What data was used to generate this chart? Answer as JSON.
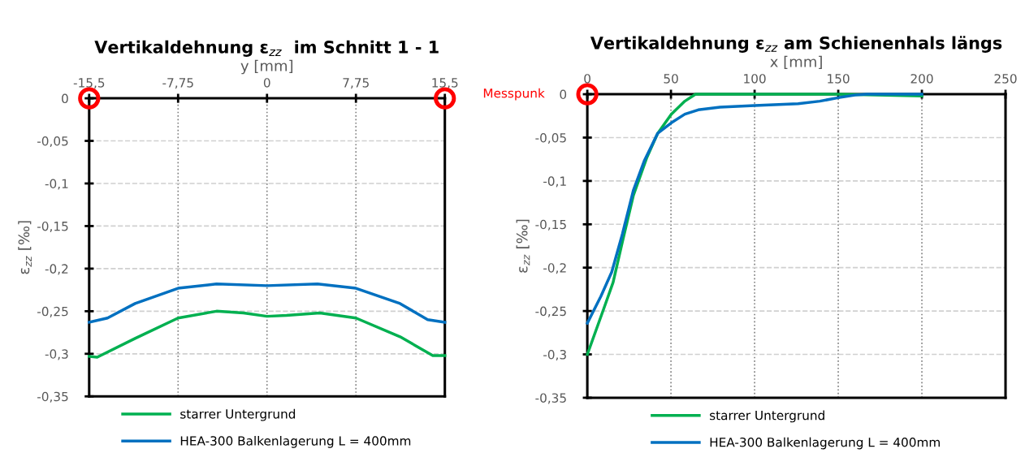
{
  "chart_data": [
    {
      "type": "line",
      "title": "Vertikaldehnung ε$_{zz}$  im Schnitt 1 - 1",
      "xlabel": "y [mm]",
      "ylabel": "ε$_{zz}$ [‰]",
      "xlim": [
        -15.5,
        15.5
      ],
      "xticks": [
        {
          "value": -15.5,
          "label": "-15,5"
        },
        {
          "value": -7.75,
          "label": "-7,75"
        },
        0,
        {
          "value": 7.75,
          "label": "7,75"
        },
        {
          "value": 15.5,
          "label": "15,5"
        }
      ],
      "ylim": [
        -0.35,
        0
      ],
      "yticks": [
        {
          "value": -0.35,
          "label": "-0,35"
        },
        {
          "value": -0.3,
          "label": "-0,3"
        },
        {
          "value": -0.25,
          "label": "-0,25"
        },
        {
          "value": -0.2,
          "label": "-0,2"
        },
        {
          "value": -0.15,
          "label": "-0,15"
        },
        {
          "value": -0.1,
          "label": "-0,1"
        },
        {
          "value": -0.05,
          "label": "-0,05"
        },
        0
      ],
      "grid": true,
      "legend": "bottom",
      "series": [
        {
          "name": "starrer Untergrund",
          "color": "#00b050",
          "x": [
            -15.5,
            -14.8,
            -11.5,
            -7.75,
            -4.4,
            -2.05,
            0,
            1.7,
            4.6,
            7.75,
            11.6,
            14.45,
            15.5
          ],
          "values": [
            -0.303,
            -0.304,
            -0.282,
            -0.258,
            -0.25,
            -0.252,
            -0.256,
            -0.255,
            -0.252,
            -0.258,
            -0.28,
            -0.302,
            -0.302
          ]
        },
        {
          "name": "HEA-300 Balkenlagerung L = 400mm",
          "color": "#0070c0",
          "x": [
            -15.5,
            -13.9,
            -11.5,
            -7.75,
            -4.4,
            0,
            4.4,
            7.75,
            11.6,
            14.0,
            15.5
          ],
          "values": [
            -0.263,
            -0.258,
            -0.241,
            -0.223,
            -0.218,
            -0.22,
            -0.218,
            -0.223,
            -0.241,
            -0.26,
            -0.263
          ]
        },
        {
          "type": "scatter",
          "marker": "circle",
          "color": "#ff0000",
          "x": [
            -15.5,
            15.5
          ],
          "values": [
            0,
            0
          ]
        }
      ]
    },
    {
      "type": "line",
      "title": "Vertikaldehnung ε$_{zz}$ am Schienenhals längs",
      "xlabel": "x [mm]",
      "ylabel": "ε$_{zz}$ [‰]",
      "xlim": [
        0,
        250
      ],
      "xticks": [
        0,
        50,
        100,
        150,
        200,
        250
      ],
      "ylim": [
        -0.35,
        0
      ],
      "yticks": [
        {
          "value": -0.35,
          "label": "-0,35"
        },
        {
          "value": -0.3,
          "label": "-0,3"
        },
        {
          "value": -0.25,
          "label": "-0,25"
        },
        {
          "value": -0.2,
          "label": "-0,2"
        },
        {
          "value": -0.15,
          "label": "-0,15"
        },
        {
          "value": -0.1,
          "label": "-0,1"
        },
        {
          "value": -0.05,
          "label": "-0,05"
        },
        0
      ],
      "grid": true,
      "legend": "bottom",
      "annotations": [
        "Messpunk"
      ],
      "series": [
        {
          "name": "starrer Untergrund",
          "color": "#00b050",
          "x": [
            0,
            9.7,
            15.4,
            21.0,
            27.5,
            35.6,
            42.1,
            50.2,
            58.3,
            64.7,
            100,
            150,
            200
          ],
          "values": [
            -0.3,
            -0.248,
            -0.217,
            -0.17,
            -0.117,
            -0.073,
            -0.045,
            -0.023,
            -0.008,
            0,
            0,
            0,
            -0.002
          ]
        },
        {
          "name": "HEA-300 Balkenlagerung L = 400mm",
          "color": "#0070c0",
          "x": [
            0,
            8.1,
            14.6,
            21.0,
            27.5,
            34,
            42.1,
            50.2,
            58.3,
            66.3,
            79.3,
            100,
            126,
            139,
            150,
            160,
            167,
            200
          ],
          "values": [
            -0.264,
            -0.233,
            -0.205,
            -0.161,
            -0.111,
            -0.077,
            -0.045,
            -0.033,
            -0.023,
            -0.018,
            -0.015,
            -0.013,
            -0.011,
            -0.008,
            -0.004,
            -0.001,
            0,
            0
          ]
        },
        {
          "type": "scatter",
          "marker": "circle",
          "color": "#ff0000",
          "x": [
            0
          ],
          "values": [
            0
          ]
        }
      ]
    }
  ]
}
